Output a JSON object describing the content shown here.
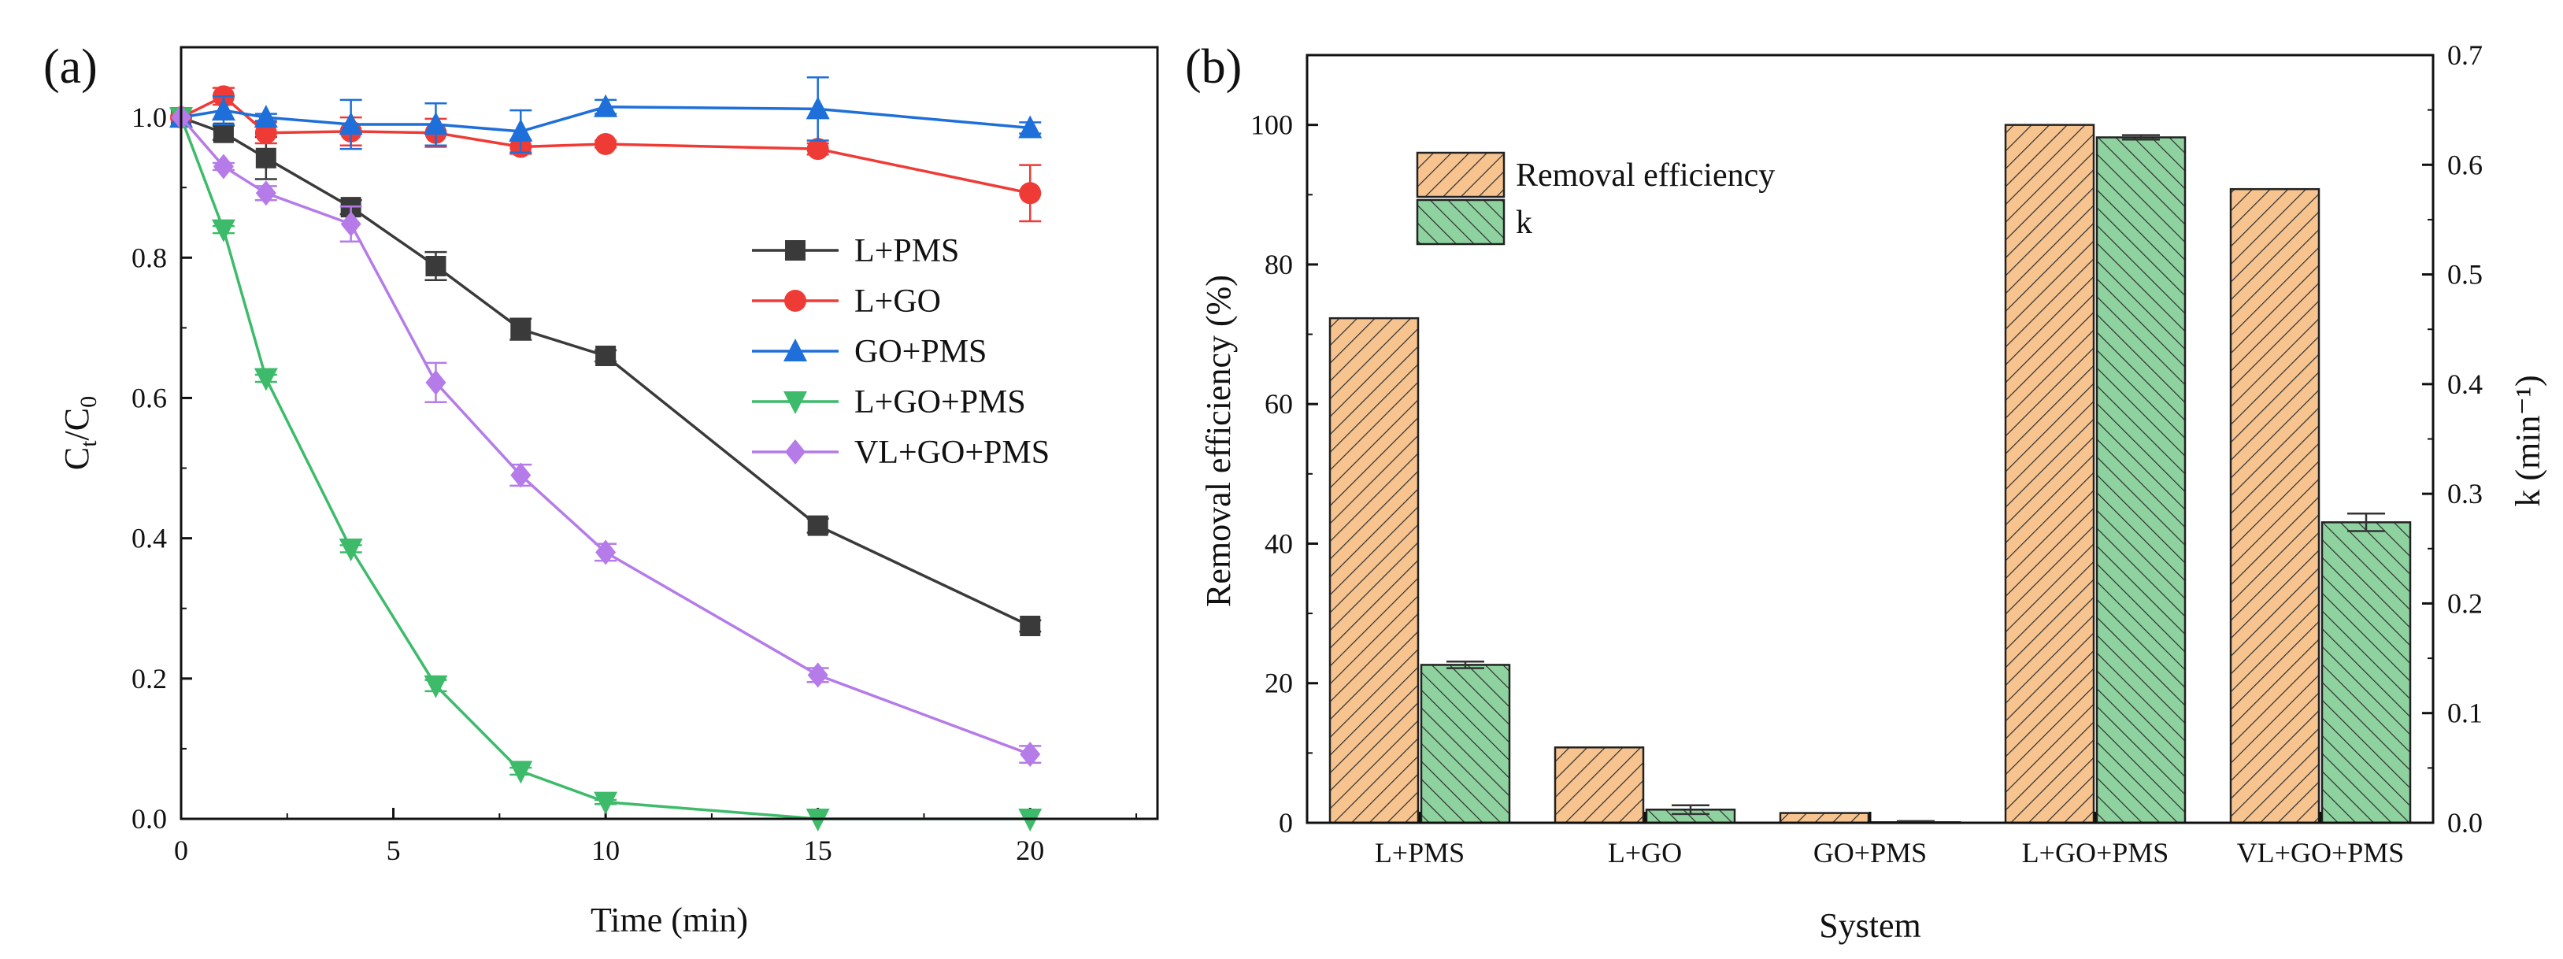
{
  "chart_data": [
    {
      "panel": "(a)",
      "type": "line",
      "xlabel": "Time (min)",
      "ylabel_main": "C",
      "ylabel_sub1": "t",
      "ylabel_sep": "/C",
      "ylabel_sub2": "0",
      "xlim": [
        0,
        23
      ],
      "ylim": [
        0,
        1.1
      ],
      "xticks": [
        "0",
        "5",
        "10",
        "15",
        "20"
      ],
      "xtick_values": [
        0,
        5,
        10,
        15,
        20
      ],
      "yticks": [
        "0.0",
        "0.2",
        "0.4",
        "0.6",
        "0.8",
        "1.0"
      ],
      "ytick_values": [
        0,
        0.2,
        0.4,
        0.6,
        0.8,
        1.0
      ],
      "x": [
        0,
        1,
        2,
        4,
        6,
        8,
        10,
        15,
        20
      ],
      "legend_position": "center-right",
      "series": [
        {
          "name": "L+PMS",
          "color": "#3a3a3a",
          "marker": "square",
          "values": [
            1.0,
            0.978,
            0.942,
            0.872,
            0.788,
            0.698,
            0.66,
            0.418,
            0.275
          ],
          "errors": [
            0,
            0.01,
            0.03,
            0.01,
            0.02,
            0.015,
            0.008,
            0.01,
            0.008
          ]
        },
        {
          "name": "L+GO",
          "color": "#ef3b36",
          "marker": "circle",
          "values": [
            1.0,
            1.03,
            0.978,
            0.98,
            0.978,
            0.958,
            0.962,
            0.955,
            0.892
          ],
          "errors": [
            0,
            0.012,
            0.015,
            0.02,
            0.02,
            0.01,
            0.005,
            0.008,
            0.04
          ]
        },
        {
          "name": "GO+PMS",
          "color": "#1e6fd9",
          "marker": "triangle-up",
          "values": [
            1.0,
            1.01,
            1.0,
            0.99,
            0.99,
            0.98,
            1.015,
            1.012,
            0.985
          ],
          "errors": [
            0,
            0.02,
            0.005,
            0.035,
            0.03,
            0.03,
            0.01,
            0.045,
            0.008
          ]
        },
        {
          "name": "L+GO+PMS",
          "color": "#3dbb6a",
          "marker": "triangle-down",
          "values": [
            1.0,
            0.84,
            0.628,
            0.385,
            0.19,
            0.068,
            0.024,
            0.0,
            0.0
          ],
          "errors": [
            0,
            0.005,
            0.005,
            0.005,
            0.008,
            0.005,
            0.003,
            0,
            0
          ]
        },
        {
          "name": "VL+GO+PMS",
          "color": "#b57be8",
          "marker": "diamond",
          "values": [
            1.0,
            0.93,
            0.892,
            0.848,
            0.622,
            0.49,
            0.38,
            0.205,
            0.092
          ],
          "errors": [
            0,
            0.005,
            0.01,
            0.025,
            0.028,
            0.015,
            0.012,
            0.01,
            0.012
          ]
        }
      ]
    },
    {
      "panel": "(b)",
      "type": "bar",
      "xlabel": "System",
      "ylabel_left": "Removal efficiency (%)",
      "ylabel_right": "k (min⁻¹)",
      "categories": [
        "L+PMS",
        "L+GO",
        "GO+PMS",
        "L+GO+PMS",
        "VL+GO+PMS"
      ],
      "ylim_left": [
        0,
        110
      ],
      "ylim_right": [
        0,
        0.7
      ],
      "yticks_left": [
        "0",
        "20",
        "40",
        "60",
        "80",
        "100"
      ],
      "ytick_values_left": [
        0,
        20,
        40,
        60,
        80,
        100
      ],
      "yticks_right": [
        "0.0",
        "0.1",
        "0.2",
        "0.3",
        "0.4",
        "0.5",
        "0.6",
        "0.7"
      ],
      "ytick_values_right": [
        0,
        0.1,
        0.2,
        0.3,
        0.4,
        0.5,
        0.6,
        0.7
      ],
      "legend_position": "upper-left",
      "series": [
        {
          "name": "Removal efficiency",
          "axis": "left",
          "color": "#f7c48f",
          "hatch": "right-diagonal",
          "values": [
            72.3,
            10.8,
            1.4,
            100.0,
            90.8
          ]
        },
        {
          "name": "k",
          "axis": "right",
          "color": "#8ed39f",
          "hatch": "left-diagonal",
          "values": [
            0.144,
            0.012,
            0.0005,
            0.625,
            0.274
          ],
          "errors": [
            0.003,
            0.004,
            0.001,
            0.002,
            0.008
          ]
        }
      ]
    }
  ]
}
